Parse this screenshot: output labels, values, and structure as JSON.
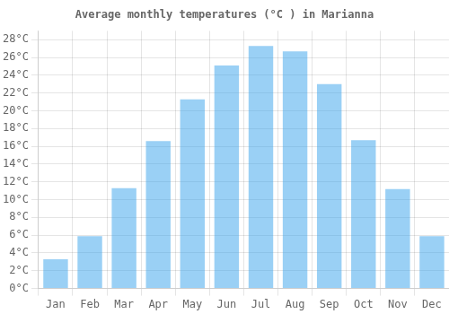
{
  "chart_data": {
    "type": "bar",
    "title": "Average monthly temperatures (°C ) in Marianna",
    "categories": [
      "Jan",
      "Feb",
      "Mar",
      "Apr",
      "May",
      "Jun",
      "Jul",
      "Aug",
      "Sep",
      "Oct",
      "Nov",
      "Dec"
    ],
    "values": [
      3.3,
      5.9,
      11.3,
      16.6,
      21.3,
      25.1,
      27.3,
      26.7,
      23.0,
      16.7,
      11.2,
      5.9
    ],
    "ylim": [
      0,
      29
    ],
    "yticks": [
      {
        "value": 0,
        "label": "0°C"
      },
      {
        "value": 2,
        "label": "2°C"
      },
      {
        "value": 4,
        "label": "4°C"
      },
      {
        "value": 6,
        "label": "6°C"
      },
      {
        "value": 8,
        "label": "8°C"
      },
      {
        "value": 10,
        "label": "10°C"
      },
      {
        "value": 12,
        "label": "12°C"
      },
      {
        "value": 14,
        "label": "14°C"
      },
      {
        "value": 16,
        "label": "16°C"
      },
      {
        "value": 18,
        "label": "18°C"
      },
      {
        "value": 20,
        "label": "20°C"
      },
      {
        "value": 22,
        "label": "22°C"
      },
      {
        "value": 24,
        "label": "24°C"
      },
      {
        "value": 26,
        "label": "26°C"
      },
      {
        "value": 28,
        "label": "28°C"
      }
    ],
    "grid": true
  }
}
